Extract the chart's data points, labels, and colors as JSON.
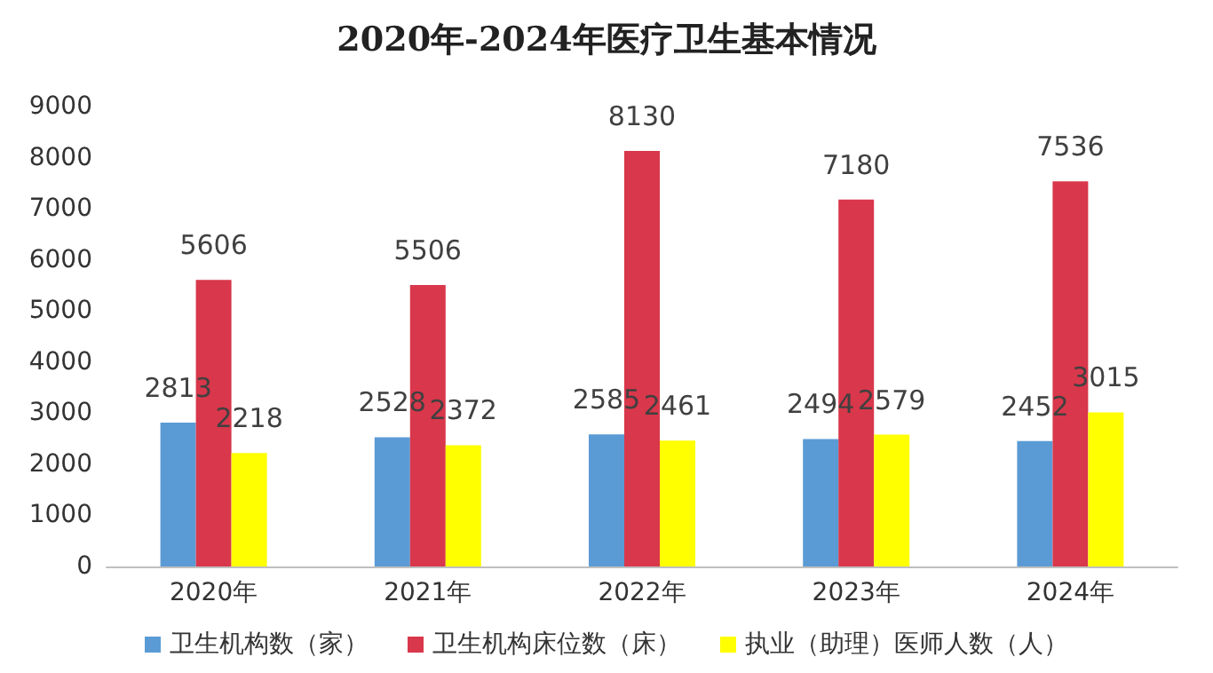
{
  "chart_data": {
    "type": "bar",
    "title": "2020年-2024年医疗卫生基本情况",
    "categories": [
      "2020年",
      "2021年",
      "2022年",
      "2023年",
      "2024年"
    ],
    "series": [
      {
        "name": "卫生机构数（家）",
        "color": "#5b9bd5",
        "values": [
          2813,
          2528,
          2585,
          2494,
          2452
        ]
      },
      {
        "name": "卫生机构床位数（床）",
        "color": "#d9374b",
        "values": [
          5606,
          5506,
          8130,
          7180,
          7536
        ]
      },
      {
        "name": "执业（助理）医师人数（人）",
        "color": "#ffff00",
        "values": [
          2218,
          2372,
          2461,
          2579,
          3015
        ]
      }
    ],
    "ylim": [
      0,
      9000
    ],
    "yticks": [
      0,
      1000,
      2000,
      3000,
      4000,
      5000,
      6000,
      7000,
      8000,
      9000
    ],
    "grid": false,
    "legend": "bottom",
    "data_labels": true
  }
}
